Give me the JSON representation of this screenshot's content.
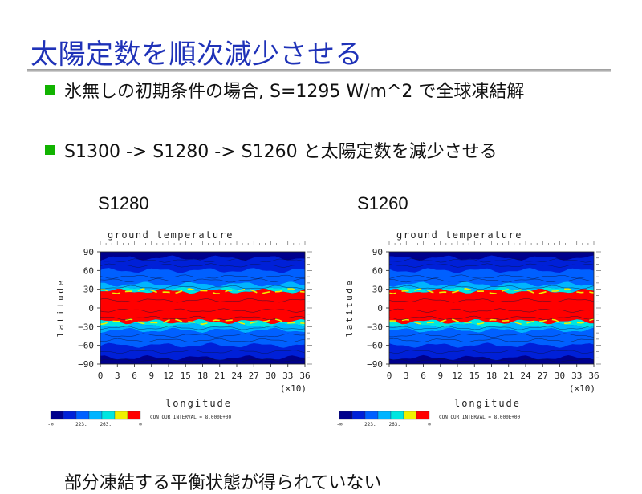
{
  "slide": {
    "title": "太陽定数を順次減少させる",
    "bullets": [
      "氷無しの初期条件の場合, S=1295 W/m^2  で全球凍結解",
      "S1300 -> S1280 -> S1260 と太陽定数を減少させる",
      "部分凍結する平衡状態が得られていない"
    ]
  },
  "plots": [
    {
      "label": "S1280",
      "plot_title": "ground temperature",
      "ylabel": "latitude",
      "xlabel": "longitude",
      "x_unit_note": "(×10)",
      "yticks": [
        "90",
        "60",
        "30",
        "0",
        "−30",
        "−60",
        "−90"
      ],
      "xticks": [
        "0",
        "3",
        "6",
        "9",
        "12",
        "15",
        "18",
        "21",
        "24",
        "27",
        "30",
        "33",
        "36"
      ],
      "colorbar_labels": [
        "-∞",
        "223.",
        "263.",
        "∞"
      ],
      "contour_note": "CONTOUR INTERVAL = 8.000E+00"
    },
    {
      "label": "S1260",
      "plot_title": "ground temperature",
      "ylabel": "latitude",
      "xlabel": "longitude",
      "x_unit_note": "(×10)",
      "yticks": [
        "90",
        "60",
        "30",
        "0",
        "−30",
        "−60",
        "−90"
      ],
      "xticks": [
        "0",
        "3",
        "6",
        "9",
        "12",
        "15",
        "18",
        "21",
        "24",
        "27",
        "30",
        "33",
        "36"
      ],
      "colorbar_labels": [
        "-∞",
        "223.",
        "263.",
        "∞"
      ],
      "contour_note": "CONTOUR INTERVAL = 8.000E+00"
    }
  ],
  "colors": {
    "title": "#1f32b8",
    "bullet": "#12b300",
    "field_palette": [
      "#00008c",
      "#0020d8",
      "#0060ff",
      "#00b4ff",
      "#00e6e0",
      "#f0f000",
      "#ff0000"
    ]
  }
}
